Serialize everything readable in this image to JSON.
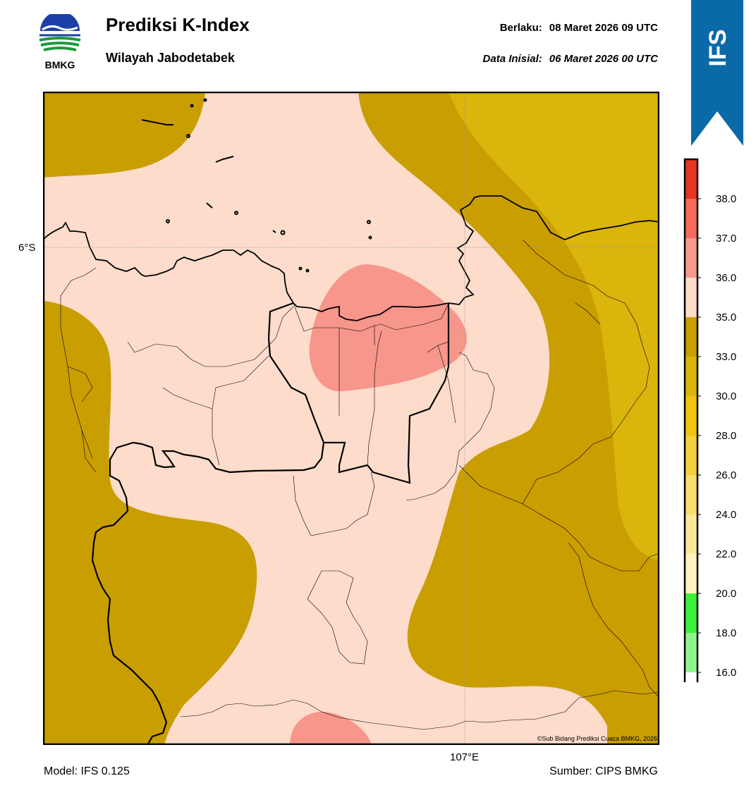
{
  "header": {
    "logo_text": "BMKG",
    "title": "Prediksi K-Index",
    "subtitle": "Wilayah Jabodetabek",
    "valid_label": "Berlaku:",
    "valid_value": "08 Maret 2026 09 UTC",
    "init_label": "Data Inisial:",
    "init_value": "06 Maret 2026 00 UTC"
  },
  "ribbon": {
    "text": "IFS",
    "color": "#0a6aa8"
  },
  "map": {
    "lat_label": "6°S",
    "lon_label": "107°E",
    "credit": "©Sub Bidang Prediksi Cuaca BMKG, 2026",
    "fill_colors": {
      "band_33_35": "#c99e00",
      "band_30_33": "#dab50c",
      "band_35_36": "#fddccb",
      "band_36_37": "#f7968a"
    }
  },
  "colorbar": {
    "ticks": [
      "38.0",
      "37.0",
      "36.0",
      "35.0",
      "33.0",
      "30.0",
      "28.0",
      "26.0",
      "24.0",
      "22.0",
      "20.0",
      "18.0",
      "16.0"
    ],
    "bands": [
      {
        "from": "38.0",
        "to": "",
        "color": "#e53524"
      },
      {
        "from": "37.0",
        "to": "38.0",
        "color": "#f26b5b"
      },
      {
        "from": "36.0",
        "to": "37.0",
        "color": "#f79a8e"
      },
      {
        "from": "35.0",
        "to": "36.0",
        "color": "#fddccb"
      },
      {
        "from": "33.0",
        "to": "35.0",
        "color": "#c99e00"
      },
      {
        "from": "30.0",
        "to": "33.0",
        "color": "#dab50c"
      },
      {
        "from": "28.0",
        "to": "30.0",
        "color": "#f1c40f"
      },
      {
        "from": "26.0",
        "to": "28.0",
        "color": "#f4d03f"
      },
      {
        "from": "24.0",
        "to": "26.0",
        "color": "#f7dc6f"
      },
      {
        "from": "22.0",
        "to": "24.0",
        "color": "#fae79a"
      },
      {
        "from": "20.0",
        "to": "22.0",
        "color": "#fdf2c0"
      },
      {
        "from": "18.0",
        "to": "20.0",
        "color": "#3ef03e"
      },
      {
        "from": "16.0",
        "to": "18.0",
        "color": "#8ef58e"
      },
      {
        "from": "",
        "to": "16.0",
        "color": "#ffffff"
      }
    ]
  },
  "footer": {
    "model": "Model: IFS 0.125",
    "source": "Sumber: CIPS BMKG"
  }
}
